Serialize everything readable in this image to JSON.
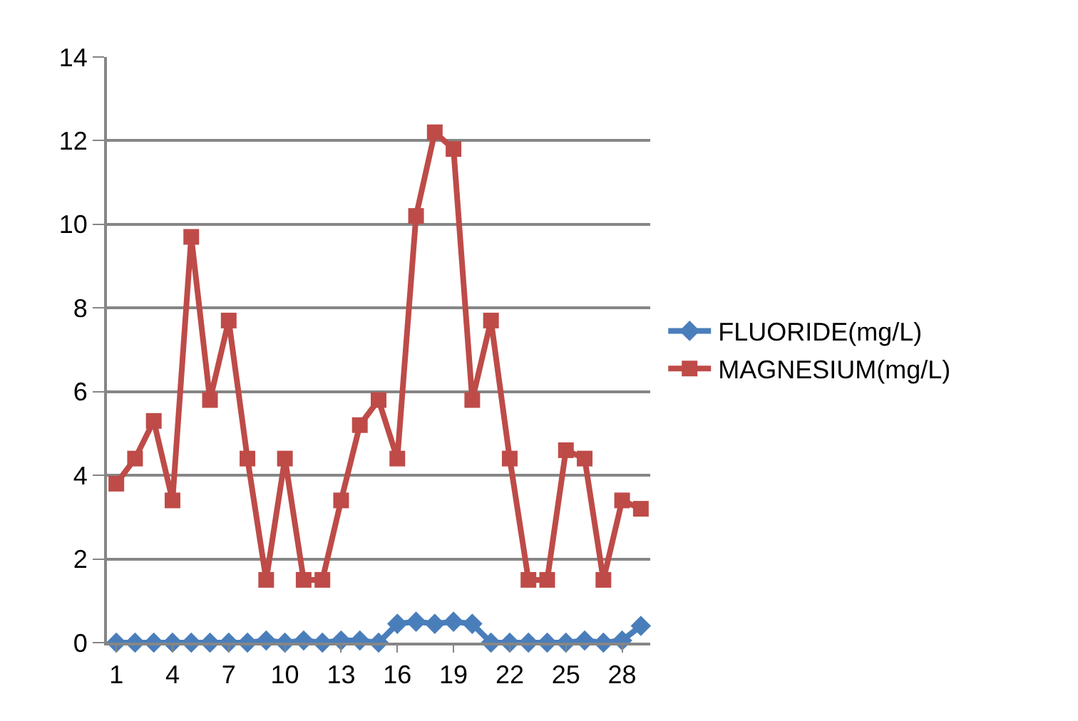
{
  "chart_data": {
    "type": "line",
    "x": [
      1,
      2,
      3,
      4,
      5,
      6,
      7,
      8,
      9,
      10,
      11,
      12,
      13,
      14,
      15,
      16,
      17,
      18,
      19,
      20,
      21,
      22,
      23,
      24,
      25,
      26,
      27,
      28,
      29
    ],
    "xlim": [
      0.5,
      29.5
    ],
    "xticks": [
      1,
      4,
      7,
      10,
      13,
      16,
      19,
      22,
      25,
      28
    ],
    "ylim": [
      0,
      14
    ],
    "yticks": [
      0,
      2,
      4,
      6,
      8,
      10,
      12,
      14
    ],
    "grid": "y",
    "legend": "right",
    "series": [
      {
        "name": "FLUORIDE(mg/L)",
        "color": "#4a7ebb",
        "marker": "diamond",
        "values": [
          0,
          0,
          0,
          0,
          0,
          0,
          0,
          0,
          0.05,
          0,
          0.05,
          0,
          0.05,
          0.05,
          0,
          0.45,
          0.5,
          0.45,
          0.5,
          0.45,
          0,
          0,
          0,
          0,
          0,
          0.05,
          0,
          0.05,
          0.4
        ]
      },
      {
        "name": "MAGNESIUM(mg/L)",
        "color": "#be4b48",
        "marker": "square",
        "values": [
          3.8,
          4.4,
          5.3,
          3.4,
          9.7,
          5.8,
          7.7,
          4.4,
          1.5,
          4.4,
          1.5,
          1.5,
          3.4,
          5.2,
          5.8,
          4.4,
          10.2,
          12.2,
          11.8,
          5.8,
          7.7,
          4.4,
          1.5,
          1.5,
          4.6,
          4.4,
          1.5,
          3.4,
          3.2
        ]
      }
    ]
  }
}
